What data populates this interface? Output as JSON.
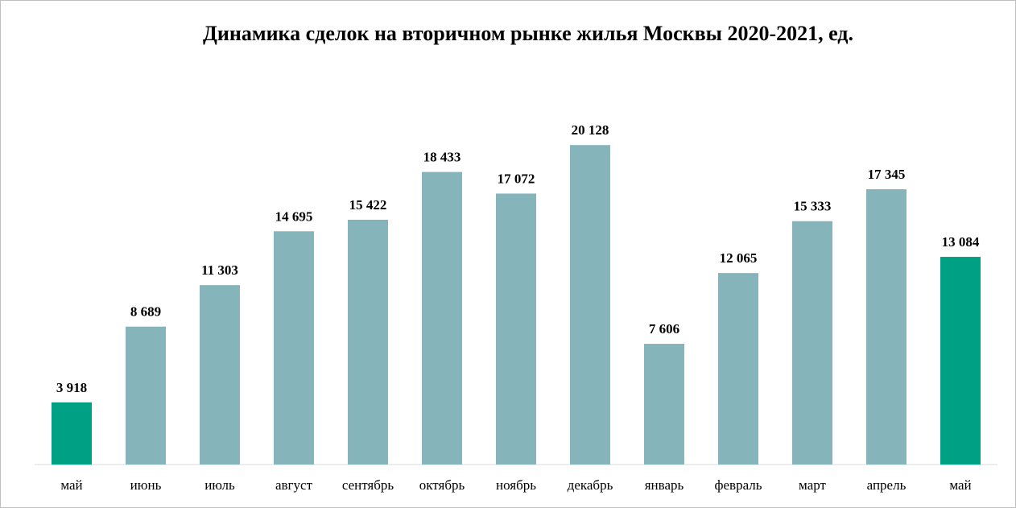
{
  "chart_data": {
    "type": "bar",
    "title": "Динамика сделок на вторичном рынке жилья Москвы 2020-2021, ед.",
    "categories": [
      "май",
      "июнь",
      "июль",
      "август",
      "сентябрь",
      "октябрь",
      "ноябрь",
      "декабрь",
      "январь",
      "февраль",
      "март",
      "апрель",
      "май"
    ],
    "values": [
      3918,
      8689,
      11303,
      14695,
      15422,
      18433,
      17072,
      20128,
      7606,
      12065,
      15333,
      17345,
      13084
    ],
    "value_labels": [
      "3 918",
      "8 689",
      "11 303",
      "14 695",
      "15 422",
      "18 433",
      "17 072",
      "20 128",
      "7 606",
      "12 065",
      "15 333",
      "17 345",
      "13 084"
    ],
    "highlighted_indices": [
      0,
      12
    ],
    "ylim": [
      0,
      21000
    ],
    "xlabel": "",
    "ylabel": "",
    "grid": false,
    "legend": "none",
    "colors": {
      "bar": "#85b4ba",
      "highlight": "#00a084",
      "axis": "#d9d9d9"
    }
  }
}
